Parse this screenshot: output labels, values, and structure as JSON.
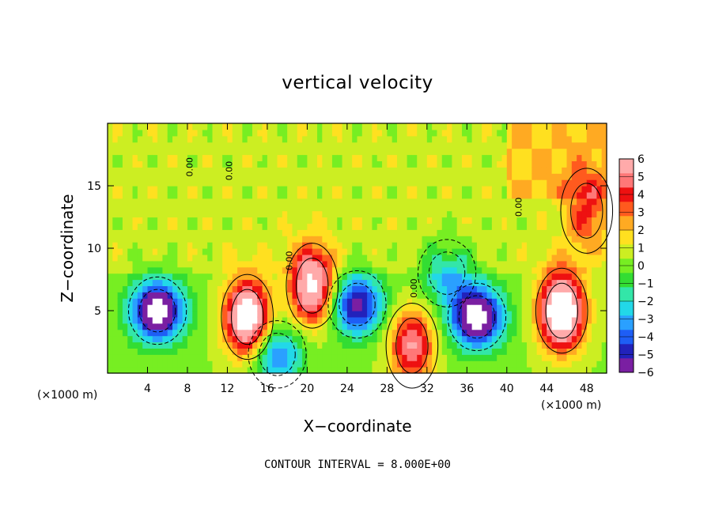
{
  "chart_data": {
    "type": "heatmap",
    "title": "vertical velocity",
    "xlabel": "X−coordinate",
    "ylabel": "Z−coordinate",
    "x_unit": "(×1000 m)",
    "x_unit_right": "(×1000 m)",
    "note": "CONTOUR INTERVAL = 8.000E+00",
    "xlim": [
      0,
      50
    ],
    "ylim": [
      0,
      20
    ],
    "x_ticks": [
      4,
      8,
      12,
      16,
      20,
      24,
      28,
      32,
      36,
      40,
      44,
      48
    ],
    "y_ticks": [
      5,
      10,
      15
    ],
    "colorbar": {
      "min": -6,
      "max": 6,
      "tick_labels": [
        "6",
        "5",
        "4",
        "3",
        "2",
        "1",
        "0",
        "−1",
        "−2",
        "−3",
        "−4",
        "−5",
        "−6"
      ],
      "colors": [
        "#7a1fa2",
        "#2222bb",
        "#1e5ef5",
        "#2aa0ff",
        "#22d8e8",
        "#33e6a8",
        "#33dd33",
        "#77ee22",
        "#ccee22",
        "#ffe020",
        "#ffaa22",
        "#ff5a1e",
        "#ee1111",
        "#ff7777",
        "#ffaaaa"
      ]
    },
    "contour_labels": [
      "0.00",
      "0.00",
      "0.00",
      "0.00",
      "0.00"
    ],
    "features": [
      {
        "kind": "updraft",
        "x": 14,
        "z": 4.5,
        "peak": 8
      },
      {
        "kind": "updraft",
        "x": 20.5,
        "z": 7,
        "peak": 7
      },
      {
        "kind": "updraft",
        "x": 30.5,
        "z": 2.2,
        "peak": 5
      },
      {
        "kind": "updraft",
        "x": 45.5,
        "z": 5,
        "peak": 9
      },
      {
        "kind": "updraft",
        "x": 48,
        "z": 13,
        "peak": 3
      },
      {
        "kind": "downdraft",
        "x": 5,
        "z": 5,
        "peak": -8
      },
      {
        "kind": "downdraft",
        "x": 25,
        "z": 5.5,
        "peak": -6
      },
      {
        "kind": "downdraft",
        "x": 37,
        "z": 4.5,
        "peak": -8
      },
      {
        "kind": "downdraft",
        "x": 17,
        "z": 1.5,
        "peak": -4
      },
      {
        "kind": "downdraft",
        "x": 34,
        "z": 8,
        "peak": -3
      }
    ]
  }
}
